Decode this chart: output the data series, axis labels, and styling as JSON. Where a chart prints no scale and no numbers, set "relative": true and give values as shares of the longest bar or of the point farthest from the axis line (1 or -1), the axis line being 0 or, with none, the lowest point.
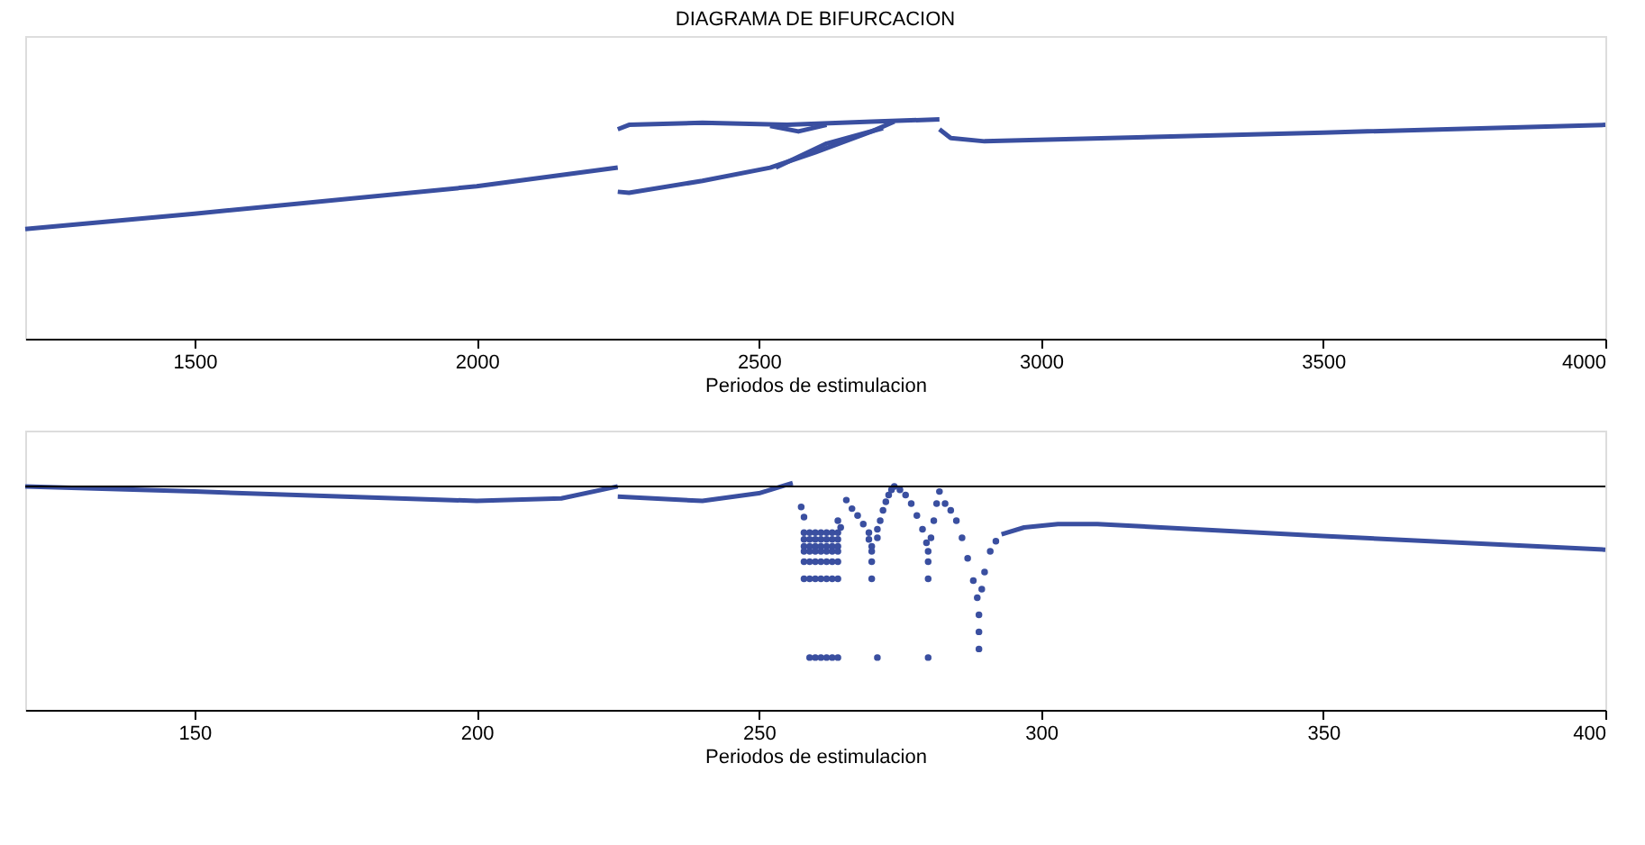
{
  "chart_data": [
    {
      "type": "line",
      "title": "DIAGRAMA DE BIFURCACION",
      "xlabel": "Periodos de estimulacion",
      "relative": true,
      "xlim": [
        1200,
        4000
      ],
      "xticks": [
        1500,
        2000,
        2500,
        3000,
        3500,
        4000
      ],
      "grid": false,
      "line_style": "solid",
      "series": [
        {
          "color": "#3a4fa0",
          "x": [
            1200,
            1500,
            2000,
            2250
          ],
          "values": [
            0.5,
            0.57,
            0.695,
            0.78
          ]
        },
        {
          "color": "#3a4fa0",
          "x": [
            2250,
            2270,
            2400,
            2550,
            2700,
            2820
          ],
          "values": [
            0.955,
            0.975,
            0.985,
            0.975,
            0.99,
            1.0
          ]
        },
        {
          "color": "#3a4fa0",
          "x": [
            2520,
            2570,
            2620
          ],
          "values": [
            0.97,
            0.945,
            0.975
          ]
        },
        {
          "color": "#3a4fa0",
          "x": [
            2250,
            2270,
            2400,
            2520,
            2600,
            2700,
            2740
          ],
          "values": [
            0.67,
            0.665,
            0.72,
            0.78,
            0.85,
            0.945,
            0.99
          ]
        },
        {
          "color": "#3a4fa0",
          "x": [
            2530,
            2620,
            2720
          ],
          "values": [
            0.78,
            0.89,
            0.96
          ]
        },
        {
          "color": "#3a4fa0",
          "x": [
            2820,
            2840,
            2900,
            3500,
            4000
          ],
          "values": [
            0.955,
            0.915,
            0.9,
            0.94,
            0.975
          ]
        }
      ]
    },
    {
      "type": "line",
      "xlabel": "Periodos de estimulacion",
      "relative": true,
      "xlim": [
        120,
        400
      ],
      "xticks": [
        150,
        200,
        250,
        300,
        350,
        400
      ],
      "grid": false,
      "line_style": "solid",
      "ref_lines": [
        {
          "axis": "y",
          "value": 0,
          "color": "#000000"
        }
      ],
      "series": [
        {
          "color": "#3a4fa0",
          "x": [
            120,
            150,
            200,
            215,
            225
          ],
          "values": [
            0,
            -0.03,
            -0.085,
            -0.07,
            0
          ]
        },
        {
          "color": "#3a4fa0",
          "x": [
            225,
            240,
            250,
            256
          ],
          "values": [
            -0.06,
            -0.085,
            -0.04,
            0.02
          ]
        },
        {
          "type": "scatter",
          "marker": "circle",
          "color": "#3a4fa0",
          "x": [
            257.5,
            258,
            264,
            264.5,
            258,
            259,
            260,
            261,
            262,
            263,
            264,
            258,
            259,
            260,
            261,
            262,
            263,
            264,
            258,
            259,
            260,
            261,
            262,
            263,
            264,
            258,
            259,
            260,
            261,
            262,
            263,
            264,
            258,
            259,
            260,
            261,
            262,
            263,
            264,
            258,
            259,
            260,
            261,
            262,
            263,
            264,
            259,
            260,
            261,
            262,
            263,
            264,
            265.5,
            266.5,
            267.5,
            268.5,
            269.5,
            269.5,
            270,
            270,
            270,
            270,
            271,
            271,
            271,
            271.5,
            272,
            272.5,
            273,
            273.5,
            274,
            275,
            276,
            277,
            278,
            279,
            279.7,
            280,
            280,
            280,
            280,
            280.5,
            281,
            281.5,
            282,
            283,
            284,
            285,
            286,
            287,
            288,
            288.7,
            289,
            289,
            289,
            289.5,
            290,
            291,
            292
          ],
          "values": [
            -0.12,
            -0.18,
            -0.2,
            -0.24,
            -0.27,
            -0.27,
            -0.27,
            -0.27,
            -0.27,
            -0.27,
            -0.27,
            -0.31,
            -0.31,
            -0.31,
            -0.31,
            -0.31,
            -0.31,
            -0.31,
            -0.35,
            -0.35,
            -0.35,
            -0.35,
            -0.35,
            -0.35,
            -0.35,
            -0.38,
            -0.38,
            -0.38,
            -0.38,
            -0.38,
            -0.38,
            -0.38,
            -0.44,
            -0.44,
            -0.44,
            -0.44,
            -0.44,
            -0.44,
            -0.44,
            -0.54,
            -0.54,
            -0.54,
            -0.54,
            -0.54,
            -0.54,
            -0.54,
            -1.0,
            -1.0,
            -1.0,
            -1.0,
            -1.0,
            -1.0,
            -0.08,
            -0.13,
            -0.17,
            -0.22,
            -0.27,
            -0.31,
            -0.35,
            -0.38,
            -0.44,
            -0.54,
            -1.0,
            -0.3,
            -0.25,
            -0.2,
            -0.14,
            -0.09,
            -0.05,
            -0.02,
            0.0,
            -0.02,
            -0.05,
            -0.1,
            -0.17,
            -0.25,
            -0.33,
            -0.38,
            -0.44,
            -0.54,
            -1.0,
            -0.3,
            -0.2,
            -0.1,
            -0.03,
            -0.1,
            -0.14,
            -0.2,
            -0.3,
            -0.42,
            -0.55,
            -0.65,
            -0.75,
            -0.85,
            -0.95,
            -0.6,
            -0.5,
            -0.38,
            -0.32
          ]
        },
        {
          "color": "#3a4fa0",
          "x": [
            293,
            297,
            303,
            310,
            350,
            400
          ],
          "values": [
            -0.28,
            -0.24,
            -0.22,
            -0.22,
            -0.29,
            -0.37
          ]
        }
      ]
    }
  ]
}
